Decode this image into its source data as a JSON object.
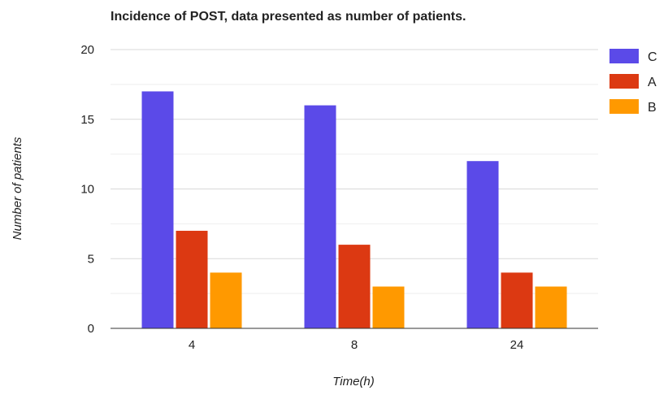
{
  "colors": {
    "C": "#5b4ae8",
    "A": "#dc3912",
    "B": "#ff9900",
    "grid": "#e6e6e6",
    "axis": "#333333",
    "text": "#222222"
  },
  "chart_data": {
    "type": "bar",
    "title": "Incidence of POST, data presented as number of patients.",
    "xlabel": "Time(h)",
    "ylabel": "Number of patients",
    "categories": [
      "4",
      "8",
      "24"
    ],
    "series": [
      {
        "name": "C",
        "values": [
          17,
          16,
          12
        ]
      },
      {
        "name": "A",
        "values": [
          7,
          6,
          4
        ]
      },
      {
        "name": "B",
        "values": [
          4,
          3,
          3
        ]
      }
    ],
    "ylim": [
      0,
      20
    ],
    "yticks": [
      0,
      5,
      10,
      15,
      20
    ],
    "grid": true,
    "legend": "right"
  }
}
